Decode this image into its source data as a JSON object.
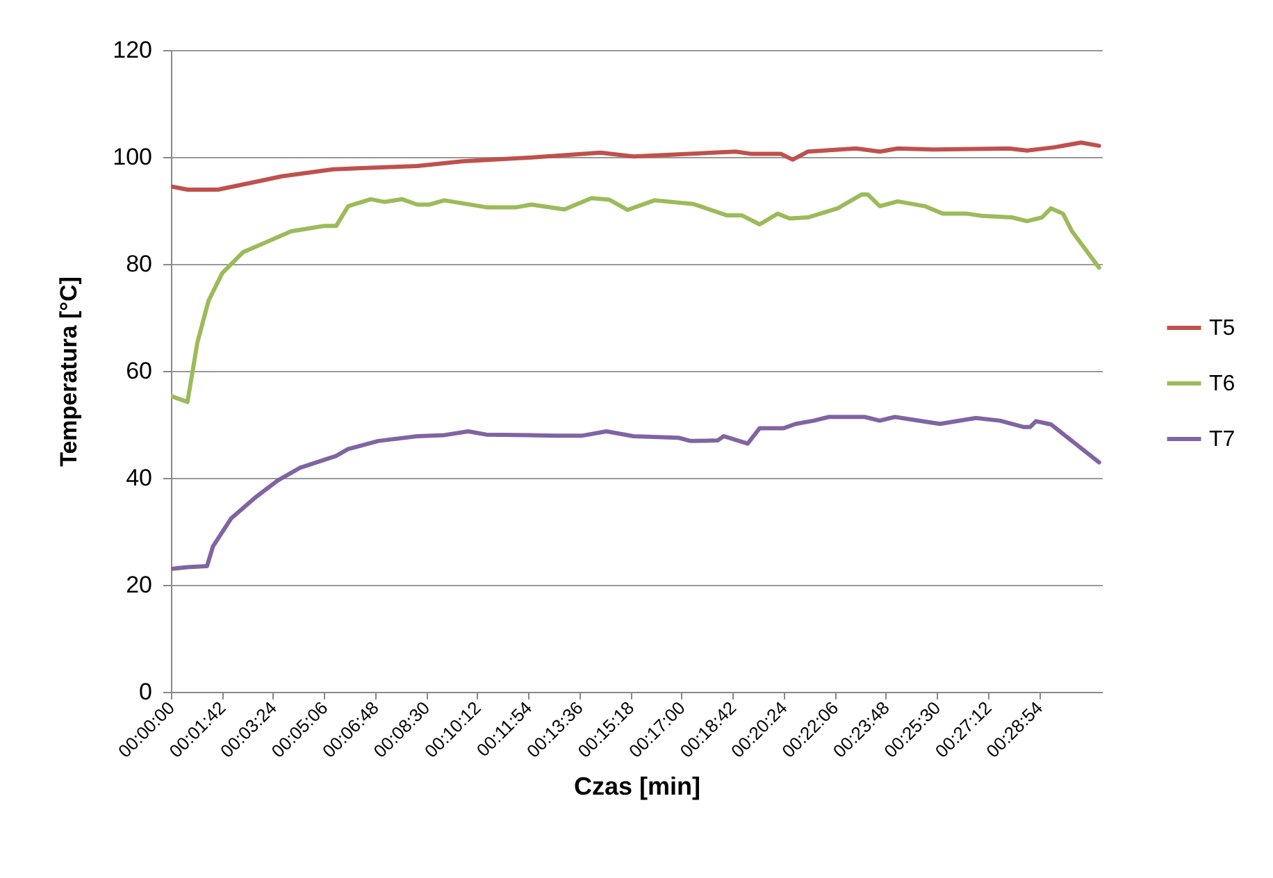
{
  "chart_data": {
    "type": "line",
    "xlabel": "Czas [min]",
    "ylabel": "Temperatura [°C]",
    "xlim": [
      0,
      31
    ],
    "ylim": [
      0,
      120
    ],
    "yticks": [
      0,
      20,
      40,
      60,
      80,
      100,
      120
    ],
    "xticks": [
      {
        "value": 0,
        "label": "00:00:00"
      },
      {
        "value": 1.7,
        "label": "00:01:42"
      },
      {
        "value": 3.4,
        "label": "00:03:24"
      },
      {
        "value": 5.1,
        "label": "00:05:06"
      },
      {
        "value": 6.8,
        "label": "00:06:48"
      },
      {
        "value": 8.5,
        "label": "00:08:30"
      },
      {
        "value": 10.2,
        "label": "00:10:12"
      },
      {
        "value": 11.9,
        "label": "00:11:54"
      },
      {
        "value": 13.6,
        "label": "00:13:36"
      },
      {
        "value": 15.3,
        "label": "00:15:18"
      },
      {
        "value": 17,
        "label": "00:17:00"
      },
      {
        "value": 18.7,
        "label": "00:18:42"
      },
      {
        "value": 20.4,
        "label": "00:20:24"
      },
      {
        "value": 22.1,
        "label": "00:22:06"
      },
      {
        "value": 23.8,
        "label": "00:23:48"
      },
      {
        "value": 25.5,
        "label": "00:25:30"
      },
      {
        "value": 27.2,
        "label": "00:27:12"
      },
      {
        "value": 28.9,
        "label": "00:28:54"
      }
    ],
    "grid": "y",
    "legend": "right",
    "line_style": "solid",
    "series": [
      {
        "name": "T5",
        "color": "#c0504d",
        "x": [
          0,
          0.55,
          1.57,
          2.77,
          3.7,
          5.4,
          8.2,
          9.7,
          12.0,
          14.3,
          15.4,
          18.8,
          19.3,
          20.3,
          20.7,
          21.2,
          22.8,
          23.6,
          24.2,
          25.4,
          27.9,
          28.5,
          29.4,
          30.3,
          30.9
        ],
        "values": [
          94.5,
          93.9,
          93.9,
          95.3,
          96.4,
          97.7,
          98.3,
          99.2,
          99.9,
          100.8,
          100.1,
          101.0,
          100.6,
          100.6,
          99.5,
          101.0,
          101.6,
          101.0,
          101.6,
          101.4,
          101.6,
          101.2,
          101.8,
          102.7,
          102.1
        ]
      },
      {
        "name": "T6",
        "color": "#9bbb59",
        "x": [
          0,
          0.55,
          0.88,
          1.25,
          1.71,
          2.4,
          3.1,
          4.0,
          5.1,
          5.5,
          5.9,
          6.65,
          7.1,
          7.7,
          8.2,
          8.6,
          9.1,
          10.5,
          11.5,
          12.0,
          13.1,
          14.0,
          14.6,
          15.2,
          16.1,
          17.4,
          18.5,
          19.0,
          19.6,
          20.2,
          20.6,
          21.2,
          22.2,
          23.0,
          23.2,
          23.6,
          24.2,
          25.1,
          25.7,
          26.5,
          27.0,
          28.0,
          28.5,
          29.0,
          29.3,
          29.7,
          30.0,
          30.9
        ],
        "values": [
          55.3,
          54.2,
          65.3,
          73.1,
          78.3,
          82.2,
          83.9,
          86.1,
          87.1,
          87.1,
          90.8,
          92.1,
          91.6,
          92.1,
          91.1,
          91.1,
          91.9,
          90.6,
          90.6,
          91.1,
          90.2,
          92.3,
          92.0,
          90.1,
          91.9,
          91.2,
          89.1,
          89.1,
          87.4,
          89.4,
          88.5,
          88.7,
          90.4,
          93.0,
          93.0,
          90.8,
          91.7,
          90.8,
          89.4,
          89.4,
          89.0,
          88.7,
          88.0,
          88.7,
          90.4,
          89.4,
          86.1,
          79.3
        ]
      },
      {
        "name": "T7",
        "color": "#8064a2",
        "x": [
          0,
          0.55,
          1.2,
          1.4,
          2.0,
          2.8,
          3.55,
          4.3,
          5.5,
          5.9,
          6.9,
          8.2,
          9.1,
          9.9,
          10.5,
          12.8,
          13.7,
          14.5,
          15.4,
          16.9,
          17.3,
          18.2,
          18.4,
          19.2,
          19.6,
          20.4,
          20.8,
          21.4,
          21.9,
          23.1,
          23.6,
          24.1,
          25.6,
          26.8,
          27.6,
          28.4,
          28.6,
          28.8,
          29.3,
          30.0,
          30.9
        ],
        "values": [
          23.0,
          23.3,
          23.5,
          27.2,
          32.4,
          36.3,
          39.5,
          41.9,
          44.1,
          45.4,
          46.9,
          47.8,
          48.0,
          48.7,
          48.1,
          47.9,
          47.9,
          48.7,
          47.8,
          47.5,
          46.9,
          47.0,
          47.8,
          46.4,
          49.3,
          49.3,
          50.1,
          50.7,
          51.4,
          51.4,
          50.7,
          51.4,
          50.1,
          51.2,
          50.7,
          49.5,
          49.5,
          50.6,
          50.0,
          46.9,
          42.9
        ]
      }
    ]
  }
}
